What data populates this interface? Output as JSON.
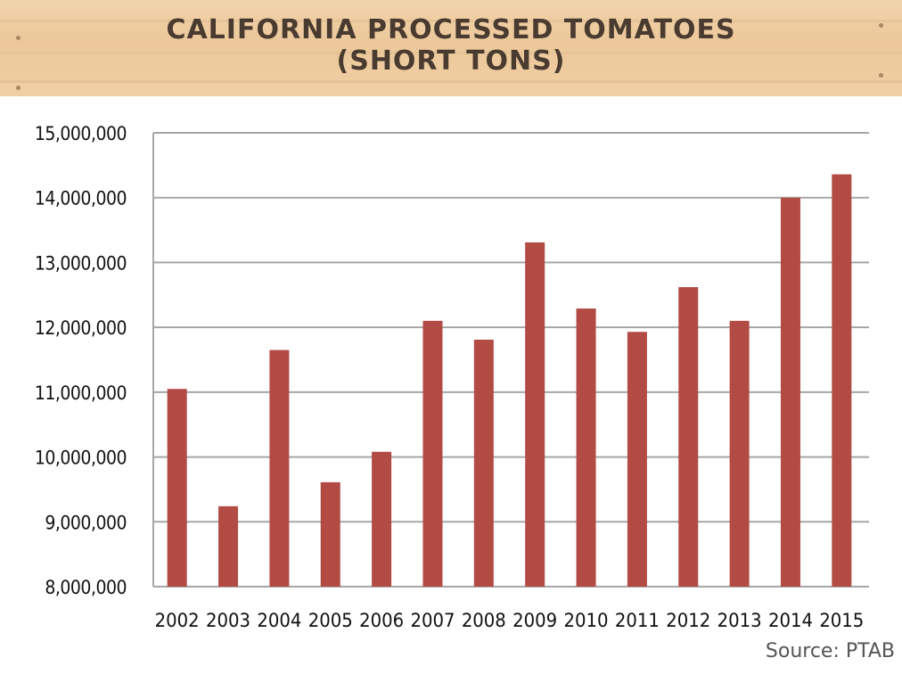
{
  "title_line1": "CALIFORNIA PROCESSED TOMATOES",
  "title_line2": "(SHORT TONS)",
  "source": "Source: PTAB",
  "colors": {
    "bar": "#b34b45",
    "grid": "#a6a6a6",
    "header_text": "#4a3b30"
  },
  "chart_data": {
    "type": "bar",
    "categories": [
      "2002",
      "2003",
      "2004",
      "2005",
      "2006",
      "2007",
      "2008",
      "2009",
      "2010",
      "2011",
      "2012",
      "2013",
      "2014",
      "2015"
    ],
    "values": [
      11050000,
      9240000,
      11650000,
      9610000,
      10080000,
      12100000,
      11810000,
      13310000,
      12290000,
      11930000,
      12620000,
      12100000,
      14000000,
      14360000
    ],
    "title": "CALIFORNIA PROCESSED TOMATOES (SHORT TONS)",
    "xlabel": "",
    "ylabel": "",
    "ylim": [
      8000000,
      15000000
    ],
    "yticks": [
      8000000,
      9000000,
      10000000,
      11000000,
      12000000,
      13000000,
      14000000,
      15000000
    ],
    "ytick_labels": [
      "8,000,000",
      "9,000,000",
      "10,000,000",
      "11,000,000",
      "12,000,000",
      "13,000,000",
      "14,000,000",
      "15,000,000"
    ],
    "grid": true,
    "legend": "none"
  }
}
